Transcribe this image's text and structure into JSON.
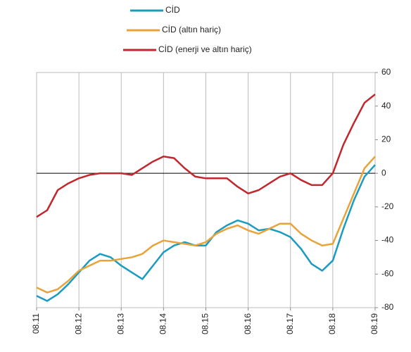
{
  "chart_data": {
    "type": "line",
    "categories": [
      "08.11",
      null,
      null,
      null,
      "08.12",
      null,
      null,
      null,
      "08.13",
      null,
      null,
      null,
      "08.14",
      null,
      null,
      null,
      "08.15",
      null,
      null,
      null,
      "08.16",
      null,
      null,
      null,
      "08.17",
      null,
      null,
      null,
      "08.18",
      null,
      null,
      null,
      "08.19"
    ],
    "series": [
      {
        "name": "CİD",
        "color": "#1a9bc0",
        "values": [
          -73,
          -76,
          -72,
          -66,
          -59,
          -52,
          -48,
          -50,
          -55,
          -59,
          -63,
          -55,
          -47,
          -43,
          -41,
          -43,
          -43,
          -35,
          -31,
          -28,
          -30,
          -34,
          -33,
          -35,
          -38,
          -45,
          -54,
          -58,
          -52,
          -33,
          -16,
          -2,
          5
        ]
      },
      {
        "name": "CİD (altın hariç)",
        "color": "#e8a33a",
        "values": [
          -68,
          -71,
          -69,
          -64,
          -58,
          -55,
          -52,
          -52,
          -51,
          -50,
          -48,
          -43,
          -40,
          -41,
          -42,
          -43,
          -41,
          -36,
          -33,
          -31,
          -34,
          -36,
          -33,
          -30,
          -30,
          -36,
          -40,
          -43,
          -42,
          -27,
          -12,
          3,
          10
        ]
      },
      {
        "name": "CİD (enerji ve altın hariç)",
        "color": "#c1272d",
        "values": [
          -26,
          -22,
          -10,
          -6,
          -3,
          -1,
          0,
          0,
          0,
          -1,
          3,
          7,
          10,
          9,
          3,
          -2,
          -3,
          -3,
          -3,
          -8,
          -12,
          -10,
          -6,
          -2,
          0,
          -4,
          -7,
          -7,
          0,
          17,
          30,
          42,
          47
        ]
      }
    ],
    "ylim": [
      -80,
      60
    ],
    "yticks": [
      -80,
      -60,
      -40,
      -20,
      0,
      20,
      40,
      60
    ],
    "xgrid": true,
    "zero_line": true,
    "legend": "top"
  }
}
